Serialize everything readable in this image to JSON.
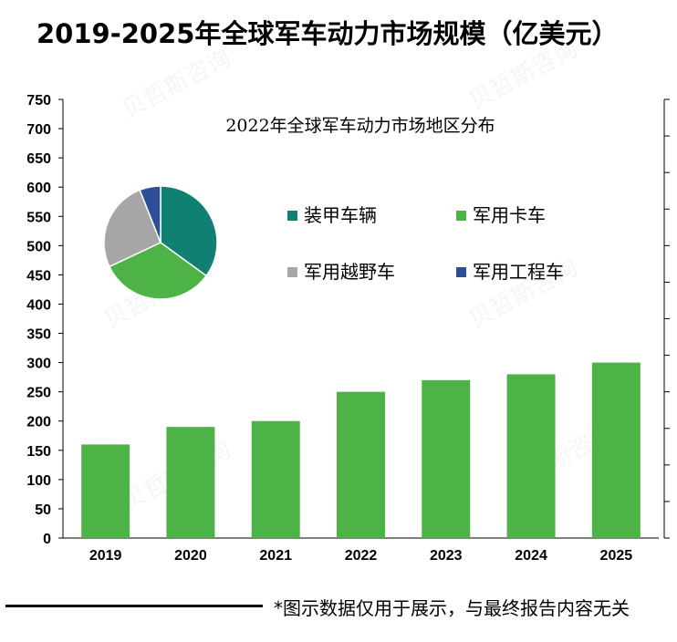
{
  "page": {
    "title": "2019-2025年全球军车动力市场规模（亿美元）",
    "footnote": "*图示数据仅用于展示，与最终报告内容无关",
    "watermark": "贝哲斯咨询"
  },
  "colors": {
    "bar": "#4db346",
    "slice_armored": "#0f8072",
    "slice_truck": "#4db346",
    "slice_offroad": "#a6a6a6",
    "slice_engineering": "#2e4f96"
  },
  "chart_data": [
    {
      "type": "bar",
      "title": "2019-2025年全球军车动力市场规模（亿美元）",
      "categories": [
        "2019",
        "2020",
        "2021",
        "2022",
        "2023",
        "2024",
        "2025"
      ],
      "values": [
        160,
        190,
        200,
        250,
        270,
        280,
        300
      ],
      "ylim": [
        0,
        750
      ],
      "yticks": [
        0,
        50,
        100,
        150,
        200,
        250,
        300,
        350,
        400,
        450,
        500,
        550,
        600,
        650,
        700,
        750
      ],
      "xlabel": "",
      "ylabel": "",
      "grid": false
    },
    {
      "type": "pie",
      "title": "2022年全球军车动力市场地区分布",
      "labels": [
        "装甲车辆",
        "军用卡车",
        "军用越野车",
        "军用工程车"
      ],
      "values": [
        35,
        33,
        26,
        6
      ],
      "legend_placement": "right"
    }
  ]
}
